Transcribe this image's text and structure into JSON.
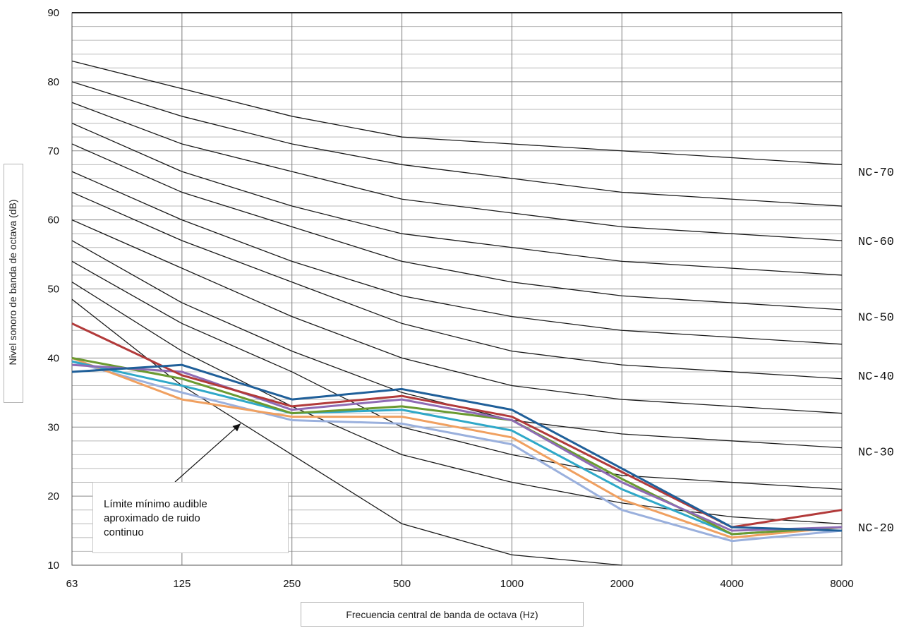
{
  "chart_data": {
    "type": "line",
    "xlabel": "Frecuencia central de banda de octava (Hz)",
    "ylabel": "Nivel sonoro de banda de octava (dB)",
    "x": [
      "63",
      "125",
      "250",
      "500",
      "1000",
      "2000",
      "4000",
      "8000"
    ],
    "ylim": [
      10,
      90
    ],
    "yticks": [
      10,
      20,
      30,
      40,
      50,
      60,
      70,
      80,
      90
    ],
    "grid": "minor horizontal every 2 dB, vertical at each octave band",
    "nc_curves": [
      {
        "values": [
          83,
          79,
          75,
          72,
          71,
          70,
          69,
          68
        ]
      },
      {
        "values": [
          80,
          75,
          71,
          68,
          66,
          64,
          63,
          62
        ]
      },
      {
        "values": [
          77,
          71,
          67,
          63,
          61,
          59,
          58,
          57
        ]
      },
      {
        "values": [
          74,
          67,
          62,
          58,
          56,
          54,
          53,
          52
        ]
      },
      {
        "values": [
          71,
          64,
          59,
          54,
          51,
          49,
          48,
          47
        ]
      },
      {
        "values": [
          67,
          60,
          54,
          49,
          46,
          44,
          43,
          42
        ]
      },
      {
        "values": [
          64,
          57,
          51,
          45,
          41,
          39,
          38,
          37
        ]
      },
      {
        "values": [
          60,
          53,
          46,
          40,
          36,
          34,
          33,
          32
        ]
      },
      {
        "values": [
          57,
          48,
          41,
          35,
          31,
          29,
          28,
          27
        ]
      },
      {
        "values": [
          54,
          45,
          38,
          30,
          26,
          23,
          22,
          21
        ]
      },
      {
        "values": [
          51,
          41,
          33,
          26,
          22,
          19,
          17,
          16
        ]
      }
    ],
    "nc_labels": [
      {
        "text": "NC-70",
        "y": 67
      },
      {
        "text": "NC-60",
        "y": 57
      },
      {
        "text": "NC-50",
        "y": 46
      },
      {
        "text": "NC-40",
        "y": 37.5
      },
      {
        "text": "NC-30",
        "y": 26.5
      },
      {
        "text": "NC-20",
        "y": 15.5
      }
    ],
    "threshold_curve": {
      "values": [
        48.5,
        36,
        26,
        16,
        11.5,
        10
      ]
    },
    "series": [
      {
        "color": "#1f5f99",
        "values": [
          38,
          39,
          34,
          35.5,
          32.5,
          24,
          15.5,
          15
        ]
      },
      {
        "color": "#b23a3a",
        "values": [
          45,
          37.5,
          33,
          34.5,
          31.5,
          23.5,
          15.5,
          18
        ]
      },
      {
        "color": "#8e6bb5",
        "values": [
          39,
          38,
          32.5,
          34,
          31,
          22,
          15,
          15.5
        ]
      },
      {
        "color": "#6a9a30",
        "values": [
          40,
          37,
          32,
          33,
          31,
          22.5,
          14.5,
          15.5
        ]
      },
      {
        "color": "#2fa8c8",
        "values": [
          39.5,
          36,
          32,
          32.5,
          29.5,
          21,
          14.5,
          15.5
        ]
      },
      {
        "color": "#f0a060",
        "values": [
          40,
          34,
          31.5,
          31.5,
          28.5,
          19.5,
          14,
          15.5
        ]
      },
      {
        "color": "#9ab0dd",
        "values": [
          39.5,
          35,
          31,
          30.5,
          27.5,
          18,
          13.5,
          15
        ]
      }
    ],
    "annotation": {
      "text": "Límite mínimo audible\naproximado de ruido\ncontinuo",
      "points_to": {
        "x": "250-500",
        "y": 30.5
      }
    }
  }
}
